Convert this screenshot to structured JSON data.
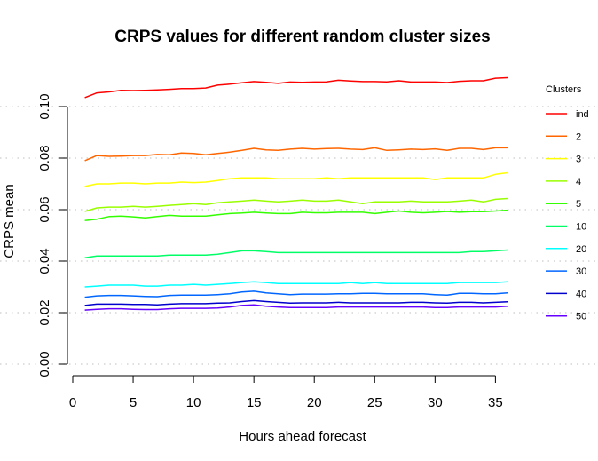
{
  "chart_data": {
    "type": "line",
    "title": "CRPS values for different random cluster sizes",
    "xlabel": "Hours ahead forecast",
    "ylabel": "CRPS mean",
    "xlim": [
      0,
      36
    ],
    "ylim": [
      0,
      0.11
    ],
    "x_ticks": [
      0,
      5,
      10,
      15,
      20,
      25,
      30,
      35
    ],
    "y_ticks": [
      0.0,
      0.02,
      0.04,
      0.06,
      0.08,
      0.1
    ],
    "y_tick_labels": [
      "0.00",
      "0.02",
      "0.04",
      "0.06",
      "0.08",
      "0.10"
    ],
    "grid": "horizontal dotted",
    "legend": {
      "title": "Clusters",
      "placement": "right"
    },
    "x": [
      1,
      2,
      3,
      4,
      5,
      6,
      7,
      8,
      9,
      10,
      11,
      12,
      13,
      14,
      15,
      16,
      17,
      18,
      19,
      20,
      21,
      22,
      23,
      24,
      25,
      26,
      27,
      28,
      29,
      30,
      31,
      32,
      33,
      34,
      35,
      36
    ],
    "series": [
      {
        "name": "ind",
        "color": "#ff0000",
        "values": [
          0.1035,
          0.1053,
          0.1057,
          0.1063,
          0.1062,
          0.1063,
          0.1065,
          0.1067,
          0.107,
          0.107,
          0.1072,
          0.1083,
          0.1087,
          0.1092,
          0.1097,
          0.1094,
          0.109,
          0.1095,
          0.1094,
          0.1095,
          0.1096,
          0.1102,
          0.1099,
          0.1097,
          0.1097,
          0.1096,
          0.11,
          0.1095,
          0.1095,
          0.1095,
          0.1093,
          0.1098,
          0.11,
          0.11,
          0.111,
          0.1112
        ]
      },
      {
        "name": "2",
        "color": "#ff6600",
        "values": [
          0.079,
          0.081,
          0.0807,
          0.0808,
          0.081,
          0.081,
          0.0814,
          0.0813,
          0.082,
          0.0818,
          0.0813,
          0.0818,
          0.0823,
          0.083,
          0.0838,
          0.0832,
          0.083,
          0.0835,
          0.0838,
          0.0835,
          0.0837,
          0.0838,
          0.0835,
          0.0833,
          0.084,
          0.083,
          0.0832,
          0.0835,
          0.0833,
          0.0836,
          0.083,
          0.0838,
          0.0838,
          0.0833,
          0.084,
          0.084
        ]
      },
      {
        "name": "3",
        "color": "#ffff00",
        "values": [
          0.069,
          0.07,
          0.07,
          0.0703,
          0.0703,
          0.07,
          0.0703,
          0.0703,
          0.0707,
          0.0705,
          0.0707,
          0.0713,
          0.072,
          0.0723,
          0.0723,
          0.0723,
          0.072,
          0.072,
          0.072,
          0.072,
          0.0723,
          0.072,
          0.0723,
          0.0723,
          0.0723,
          0.0723,
          0.0723,
          0.0723,
          0.0723,
          0.0717,
          0.0723,
          0.0723,
          0.0723,
          0.0723,
          0.0737,
          0.0743
        ]
      },
      {
        "name": "4",
        "color": "#99ff00",
        "values": [
          0.0593,
          0.0607,
          0.061,
          0.061,
          0.0613,
          0.061,
          0.0613,
          0.0617,
          0.062,
          0.0623,
          0.062,
          0.0627,
          0.063,
          0.0633,
          0.0637,
          0.0633,
          0.063,
          0.0633,
          0.0637,
          0.0633,
          0.0633,
          0.0637,
          0.063,
          0.0623,
          0.063,
          0.063,
          0.063,
          0.0633,
          0.063,
          0.063,
          0.063,
          0.0633,
          0.0637,
          0.063,
          0.064,
          0.0643
        ]
      },
      {
        "name": "5",
        "color": "#33ff00",
        "values": [
          0.0558,
          0.0563,
          0.0573,
          0.0575,
          0.0572,
          0.0568,
          0.0573,
          0.0578,
          0.0575,
          0.0575,
          0.0575,
          0.058,
          0.0585,
          0.0587,
          0.059,
          0.0587,
          0.0585,
          0.0585,
          0.059,
          0.0588,
          0.0588,
          0.059,
          0.059,
          0.059,
          0.0585,
          0.059,
          0.0595,
          0.059,
          0.0588,
          0.059,
          0.0593,
          0.059,
          0.0592,
          0.0592,
          0.0595,
          0.0598
        ]
      },
      {
        "name": "10",
        "color": "#00ff66",
        "values": [
          0.0413,
          0.042,
          0.042,
          0.042,
          0.042,
          0.042,
          0.042,
          0.0423,
          0.0423,
          0.0423,
          0.0423,
          0.0427,
          0.0433,
          0.044,
          0.044,
          0.0437,
          0.0433,
          0.0433,
          0.0433,
          0.0433,
          0.0433,
          0.0433,
          0.0433,
          0.0433,
          0.0433,
          0.0433,
          0.0433,
          0.0433,
          0.0433,
          0.0433,
          0.0433,
          0.0433,
          0.0437,
          0.0437,
          0.044,
          0.0443
        ]
      },
      {
        "name": "20",
        "color": "#00ffff",
        "values": [
          0.03,
          0.0303,
          0.0307,
          0.0307,
          0.0307,
          0.0303,
          0.0303,
          0.0307,
          0.0307,
          0.031,
          0.0307,
          0.031,
          0.0313,
          0.0317,
          0.032,
          0.0317,
          0.0313,
          0.0313,
          0.0313,
          0.0313,
          0.0313,
          0.0313,
          0.0317,
          0.0313,
          0.0317,
          0.0313,
          0.0313,
          0.0313,
          0.0313,
          0.0313,
          0.0313,
          0.0317,
          0.0317,
          0.0317,
          0.0317,
          0.032
        ]
      },
      {
        "name": "30",
        "color": "#0066ff",
        "values": [
          0.026,
          0.0265,
          0.0267,
          0.0267,
          0.0265,
          0.0263,
          0.0262,
          0.0267,
          0.0268,
          0.0268,
          0.0268,
          0.027,
          0.0273,
          0.028,
          0.0283,
          0.0277,
          0.0273,
          0.027,
          0.0272,
          0.0272,
          0.0272,
          0.0273,
          0.0273,
          0.0275,
          0.0275,
          0.0273,
          0.0273,
          0.0273,
          0.0273,
          0.027,
          0.0268,
          0.0275,
          0.0275,
          0.0273,
          0.0273,
          0.0277
        ]
      },
      {
        "name": "40",
        "color": "#0000cc",
        "values": [
          0.0228,
          0.0233,
          0.0233,
          0.0233,
          0.0232,
          0.0232,
          0.023,
          0.0233,
          0.0235,
          0.0235,
          0.0235,
          0.0237,
          0.0238,
          0.0243,
          0.0247,
          0.0243,
          0.024,
          0.0237,
          0.0238,
          0.0238,
          0.0238,
          0.024,
          0.0238,
          0.0238,
          0.0238,
          0.0238,
          0.0238,
          0.024,
          0.024,
          0.0238,
          0.0237,
          0.024,
          0.024,
          0.0238,
          0.024,
          0.0242
        ]
      },
      {
        "name": "50",
        "color": "#6600ff",
        "values": [
          0.021,
          0.0213,
          0.0215,
          0.0215,
          0.0213,
          0.0212,
          0.0212,
          0.0215,
          0.0217,
          0.0217,
          0.0217,
          0.0218,
          0.0222,
          0.0228,
          0.023,
          0.0225,
          0.0222,
          0.022,
          0.022,
          0.022,
          0.022,
          0.0222,
          0.0222,
          0.0222,
          0.0222,
          0.0222,
          0.0222,
          0.0222,
          0.0222,
          0.022,
          0.022,
          0.0222,
          0.0222,
          0.0222,
          0.0222,
          0.0225
        ]
      }
    ]
  }
}
